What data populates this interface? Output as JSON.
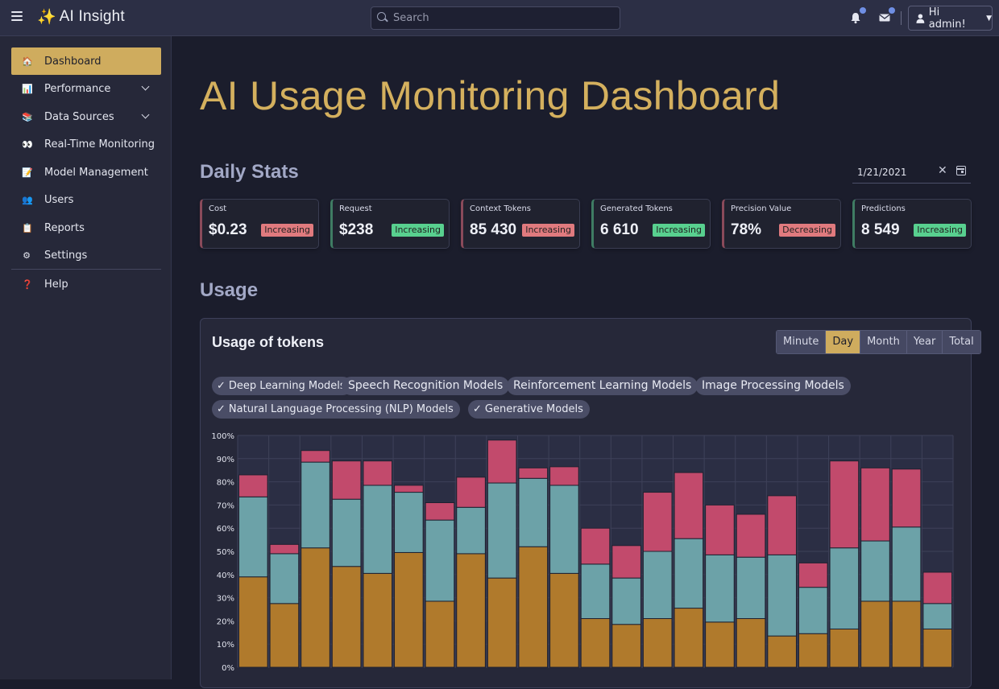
{
  "app": {
    "name": "AI Insight",
    "search_placeholder": "Search",
    "user_greeting": "Hi admin!"
  },
  "sidebar": {
    "items": [
      {
        "label": "Dashboard",
        "icon": "home-icon",
        "glyph": "🏠",
        "active": true
      },
      {
        "label": "Performance",
        "icon": "bar-chart-icon",
        "glyph": "📊",
        "expandable": true
      },
      {
        "label": "Data Sources",
        "icon": "books-icon",
        "glyph": "📚",
        "expandable": true
      },
      {
        "label": "Real-Time Monitoring",
        "icon": "eyes-icon",
        "glyph": "👀"
      },
      {
        "label": "Model Management",
        "icon": "memo-icon",
        "glyph": "📝"
      },
      {
        "label": "Users",
        "icon": "users-icon",
        "glyph": "👥"
      },
      {
        "label": "Reports",
        "icon": "clipboard-icon",
        "glyph": "📋"
      },
      {
        "label": "Settings",
        "icon": "gear-icon",
        "glyph": "⚙"
      },
      {
        "label": "Help",
        "icon": "question-icon",
        "glyph": "❓"
      }
    ]
  },
  "page": {
    "title": "AI Usage Monitoring Dashboard",
    "daily_stats_heading": "Daily Stats",
    "usage_heading": "Usage",
    "date_value": "1/21/2021"
  },
  "stats": [
    {
      "label": "Cost",
      "value": "$0.23",
      "trend": "Increasing",
      "tone": "down"
    },
    {
      "label": "Request",
      "value": "$238",
      "trend": "Increasing",
      "tone": "up"
    },
    {
      "label": "Context Tokens",
      "value": "85 430",
      "trend": "Increasing",
      "tone": "down"
    },
    {
      "label": "Generated Tokens",
      "value": "6 610",
      "trend": "Increasing",
      "tone": "up"
    },
    {
      "label": "Precision Value",
      "value": "78%",
      "trend": "Decreasing",
      "tone": "down"
    },
    {
      "label": "Predictions",
      "value": "8 549",
      "trend": "Increasing",
      "tone": "up"
    }
  ],
  "usage_card": {
    "title": "Usage of tokens",
    "ranges": [
      "Minute",
      "Day",
      "Month",
      "Year",
      "Total"
    ],
    "active_range": "Day",
    "filters": [
      {
        "label": "Deep Learning Models",
        "selected": true
      },
      {
        "label": "Speech Recognition Models",
        "selected": false
      },
      {
        "label": "Reinforcement Learning Models",
        "selected": false
      },
      {
        "label": "Image Processing Models",
        "selected": false
      },
      {
        "label": "Natural Language Processing (NLP) Models",
        "selected": true
      },
      {
        "label": "Generative Models",
        "selected": true
      }
    ]
  },
  "colors": {
    "accent": "#cfac5e",
    "series": [
      "#b07a2c",
      "#6ca2a8",
      "#c24a6c"
    ]
  },
  "chart_data": {
    "type": "bar",
    "stacked": true,
    "ylim": [
      0,
      100
    ],
    "y_ticks": [
      "0%",
      "10%",
      "20%",
      "30%",
      "40%",
      "50%",
      "60%",
      "70%",
      "80%",
      "90%",
      "100%"
    ],
    "grid": true,
    "series": [
      {
        "values": [
          39,
          27.5,
          51.5,
          43.5,
          40.5,
          49.5,
          28.5,
          49,
          38.5,
          52,
          40.5,
          21,
          18.5,
          21,
          25.5,
          19.5,
          21,
          13.5,
          14.5,
          16.5,
          28.5,
          28.5,
          16.5
        ]
      },
      {
        "values": [
          34.5,
          21.5,
          37,
          29,
          38,
          26,
          35,
          20,
          41,
          29.5,
          38,
          23.5,
          20,
          29,
          30,
          29,
          26.5,
          35,
          20,
          35,
          26,
          32,
          11
        ]
      },
      {
        "values": [
          9.5,
          4,
          5,
          16.5,
          10.5,
          3,
          7.5,
          13,
          18.5,
          4.5,
          8,
          15.5,
          14,
          25.5,
          28.5,
          21.5,
          18.5,
          25.5,
          10.5,
          37.5,
          31.5,
          25,
          13.5
        ]
      }
    ]
  }
}
